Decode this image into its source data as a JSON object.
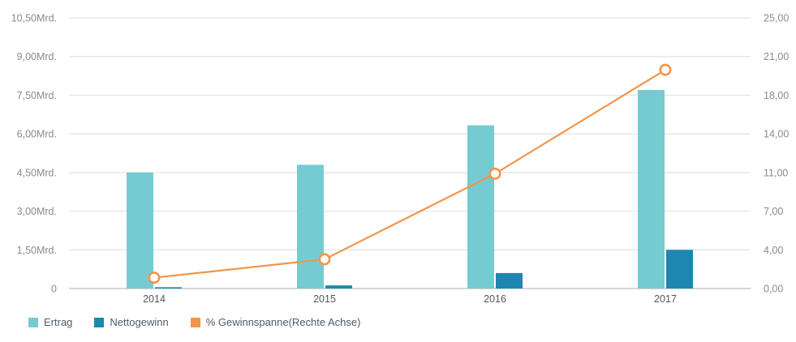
{
  "chart_data": {
    "type": "bar",
    "subtype": "combo-bar-line-dual-axis",
    "title": "",
    "categories": [
      "2014",
      "2015",
      "2016",
      "2017"
    ],
    "series": [
      {
        "name": "Ertrag",
        "render": "bar",
        "axis": "left",
        "color": "#76cbd3",
        "values": [
          4.5,
          4.8,
          6.33,
          7.7
        ]
      },
      {
        "name": "Nettogewinn",
        "render": "bar",
        "axis": "left",
        "color": "#1e87b0",
        "values": [
          0.05,
          0.12,
          0.6,
          1.5
        ]
      },
      {
        "name": "% Gewinnspanne(Rechte Achse)",
        "render": "line",
        "axis": "right",
        "color": "#f0964b",
        "values": [
          1.0,
          2.7,
          10.6,
          20.2
        ]
      }
    ],
    "left_axis": {
      "min": 0,
      "max": 10.5,
      "tick_labels": [
        "0",
        "1,50Mrd.",
        "3,00Mrd.",
        "4,50Mrd.",
        "6,00Mrd.",
        "7,50Mrd.",
        "9,00Mrd.",
        "10,50Mrd."
      ]
    },
    "right_axis": {
      "min": 0,
      "max": 25,
      "tick_labels": [
        "0,00",
        "4,00",
        "7,00",
        "11,00",
        "14,00",
        "18,00",
        "21,00",
        "25,00"
      ]
    },
    "grid": true,
    "legend_position": "bottom-left"
  },
  "style": {
    "grid_color": "#e2e2e2",
    "baseline_color": "#c9c9c9",
    "axis_label_color": "#8a8a8a",
    "category_label_color": "#555555",
    "legend_text_color": "#4f5b67",
    "marker_fill": "#ffffff"
  }
}
